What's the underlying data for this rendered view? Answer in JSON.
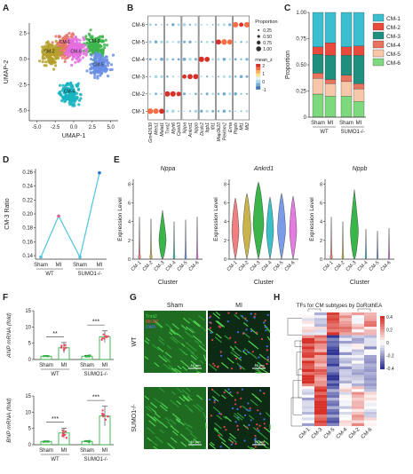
{
  "panels": {
    "A": {
      "letter": "A",
      "xlabel": "UMAP-1",
      "ylabel": "UMAP-2",
      "xticks": [
        "-5.0",
        "-2.5",
        "0.0",
        "2.5",
        "5.0"
      ],
      "yticks": [
        "2.5",
        "0.0",
        "-2.5",
        "-5.0"
      ],
      "cluster_labels": [
        "CM-1",
        "CM-2",
        "CM-3",
        "CM-4",
        "CM-5",
        "CM-6"
      ]
    },
    "B": {
      "letter": "B",
      "rows": [
        "CM-6",
        "CM-5",
        "CM-4",
        "CM-3",
        "CM-2",
        "CM-1"
      ],
      "genes": [
        "Gm42639",
        "Meis1",
        "Malat1",
        "Tnnt2",
        "Myh6",
        "Cpeb3",
        "Nppa",
        "Ankrd1",
        "Nppb",
        "Dcdc2",
        "Itgb1",
        "Ifit1",
        "Map3k20",
        "Plekhm2",
        "Erna",
        "Ptgds",
        "Mt1",
        "Mt2"
      ],
      "legend_size_title": "Proportion",
      "legend_sizes": [
        "0.25",
        "0.50",
        "0.75",
        "1.00"
      ],
      "legend_color_title": "mean_z",
      "legend_color_ticks": [
        "2",
        "1",
        "0",
        "-1"
      ]
    },
    "C": {
      "letter": "C",
      "ylabel": "Proportion",
      "yticks": [
        "1.00",
        "0.75",
        "0.50",
        "0.25",
        "0"
      ],
      "groups": [
        "WT",
        "SUMO1-/-"
      ],
      "bar_labels": [
        "Sham",
        "MI",
        "Sham",
        "MI"
      ],
      "legend": [
        "CM-1",
        "CM-2",
        "CM-3",
        "CM-4",
        "CM-5",
        "CM-6"
      ]
    },
    "D": {
      "letter": "D",
      "ylabel": "CM-3 Ratio",
      "yticks": [
        "0.26",
        "0.24",
        "0.22",
        "0.20",
        "0.18",
        "0.16",
        "0.14"
      ],
      "xlabels": [
        "Sham",
        "MI",
        "Sham",
        "MI"
      ],
      "groups": [
        "WT",
        "SUMO1-/-"
      ]
    },
    "E": {
      "letter": "E",
      "ylabel": "Expression Level",
      "xlabel": "Cluster",
      "genes": [
        "Nppa",
        "Ankrd1",
        "Nppb"
      ],
      "clusters": [
        "CM-1",
        "CM-2",
        "CM-3",
        "CM-4",
        "CM-5",
        "CM-6"
      ],
      "yticks": [
        "8",
        "6",
        "4",
        "2",
        "0"
      ]
    },
    "F": {
      "letter": "F",
      "top_ylabel": "ANP mRNA (fold)",
      "bottom_ylabel": "BNP mRNA (fold)",
      "yticks": [
        "15",
        "10",
        "5",
        "0"
      ],
      "xlabels": [
        "Sham",
        "MI",
        "Sham",
        "MI"
      ],
      "groups": [
        "WT",
        "SUMO1-/-"
      ],
      "top_sig": [
        "**",
        "***"
      ],
      "bottom_sig": [
        "***",
        "***"
      ]
    },
    "G": {
      "letter": "G",
      "col_labels": [
        "Sham",
        "MI"
      ],
      "row_labels": [
        "WT",
        "SUMO1-/-"
      ],
      "stain_labels": [
        "Tnnt2",
        "MKI67",
        "DAPI"
      ],
      "scale_bar": "40 μm"
    },
    "H": {
      "letter": "H",
      "title": "TFs for CM subtypes by DoRothEA",
      "columns": [
        "CM-1",
        "CM-3",
        "CM-5",
        "CM-4",
        "CM-2",
        "CM-6"
      ],
      "legend_ticks": [
        "0.4",
        "0.2",
        "0",
        "-0.2",
        "-0.4"
      ]
    }
  },
  "chart_data": [
    {
      "panel": "A",
      "type": "scatter",
      "xlabel": "UMAP-1",
      "ylabel": "UMAP-2",
      "xlim": [
        -6,
        6
      ],
      "ylim": [
        -6,
        3.5
      ],
      "clusters": [
        {
          "name": "CM-1",
          "center": [
            -1.0,
            1.3
          ],
          "color": "#e8746b"
        },
        {
          "name": "CM-2",
          "center": [
            -3.0,
            0.5
          ],
          "color": "#b4a02a"
        },
        {
          "name": "CM-3",
          "center": [
            3.0,
            1.2
          ],
          "color": "#3cb54a"
        },
        {
          "name": "CM-4",
          "center": [
            -0.5,
            -3.3
          ],
          "color": "#19b4c2"
        },
        {
          "name": "CM-5",
          "center": [
            3.5,
            -0.6
          ],
          "color": "#6a8ee6"
        },
        {
          "name": "CM-6",
          "center": [
            0.3,
            0.9
          ],
          "color": "#e46fe0"
        }
      ]
    },
    {
      "panel": "C",
      "type": "bar",
      "stacked": true,
      "categories": [
        "Sham",
        "MI",
        "Sham",
        "MI"
      ],
      "ylim": [
        0,
        1
      ],
      "series": [
        {
          "name": "CM-6",
          "color": "#7dd97d",
          "values": [
            0.22,
            0.2,
            0.2,
            0.15
          ]
        },
        {
          "name": "CM-5",
          "color": "#f6c7a8",
          "values": [
            0.15,
            0.12,
            0.14,
            0.12
          ]
        },
        {
          "name": "CM-4",
          "color": "#e8735e",
          "values": [
            0.05,
            0.04,
            0.06,
            0.05
          ]
        },
        {
          "name": "CM-3",
          "color": "#1f8f7f",
          "values": [
            0.18,
            0.23,
            0.19,
            0.27
          ]
        },
        {
          "name": "CM-2",
          "color": "#e84a3c",
          "values": [
            0.07,
            0.12,
            0.08,
            0.09
          ]
        },
        {
          "name": "CM-1",
          "color": "#3bbfd0",
          "values": [
            0.33,
            0.29,
            0.33,
            0.32
          ]
        }
      ]
    },
    {
      "panel": "D",
      "type": "line",
      "categories": [
        "Sham",
        "MI",
        "Sham",
        "MI"
      ],
      "values": [
        0.138,
        0.197,
        0.138,
        0.259
      ],
      "ylim": [
        0.135,
        0.265
      ]
    },
    {
      "panel": "F-top",
      "type": "bar",
      "ylabel": "ANP mRNA (fold)",
      "categories": [
        "Sham",
        "MI",
        "Sham",
        "MI"
      ],
      "values": [
        1.0,
        3.6,
        1.0,
        7.0
      ],
      "errors": [
        0.2,
        1.6,
        0.3,
        1.8
      ],
      "ylim": [
        0,
        15
      ]
    },
    {
      "panel": "F-bottom",
      "type": "bar",
      "ylabel": "BNP mRNA (fold)",
      "categories": [
        "Sham",
        "MI",
        "Sham",
        "MI"
      ],
      "values": [
        1.0,
        3.6,
        1.0,
        8.8
      ],
      "errors": [
        0.2,
        1.5,
        0.3,
        3.0
      ],
      "ylim": [
        0,
        15
      ]
    }
  ],
  "colors": {
    "cm1": "#3bbfd0",
    "cm2": "#e84a3c",
    "cm3": "#1f8f7f",
    "cm4": "#e8735e",
    "cm5": "#f6c7a8",
    "cm6": "#7dd97d",
    "line_d": "#4ec3e0",
    "bar_f": "#37b34a",
    "heat_hi": "#d73027",
    "heat_lo": "#313695"
  }
}
